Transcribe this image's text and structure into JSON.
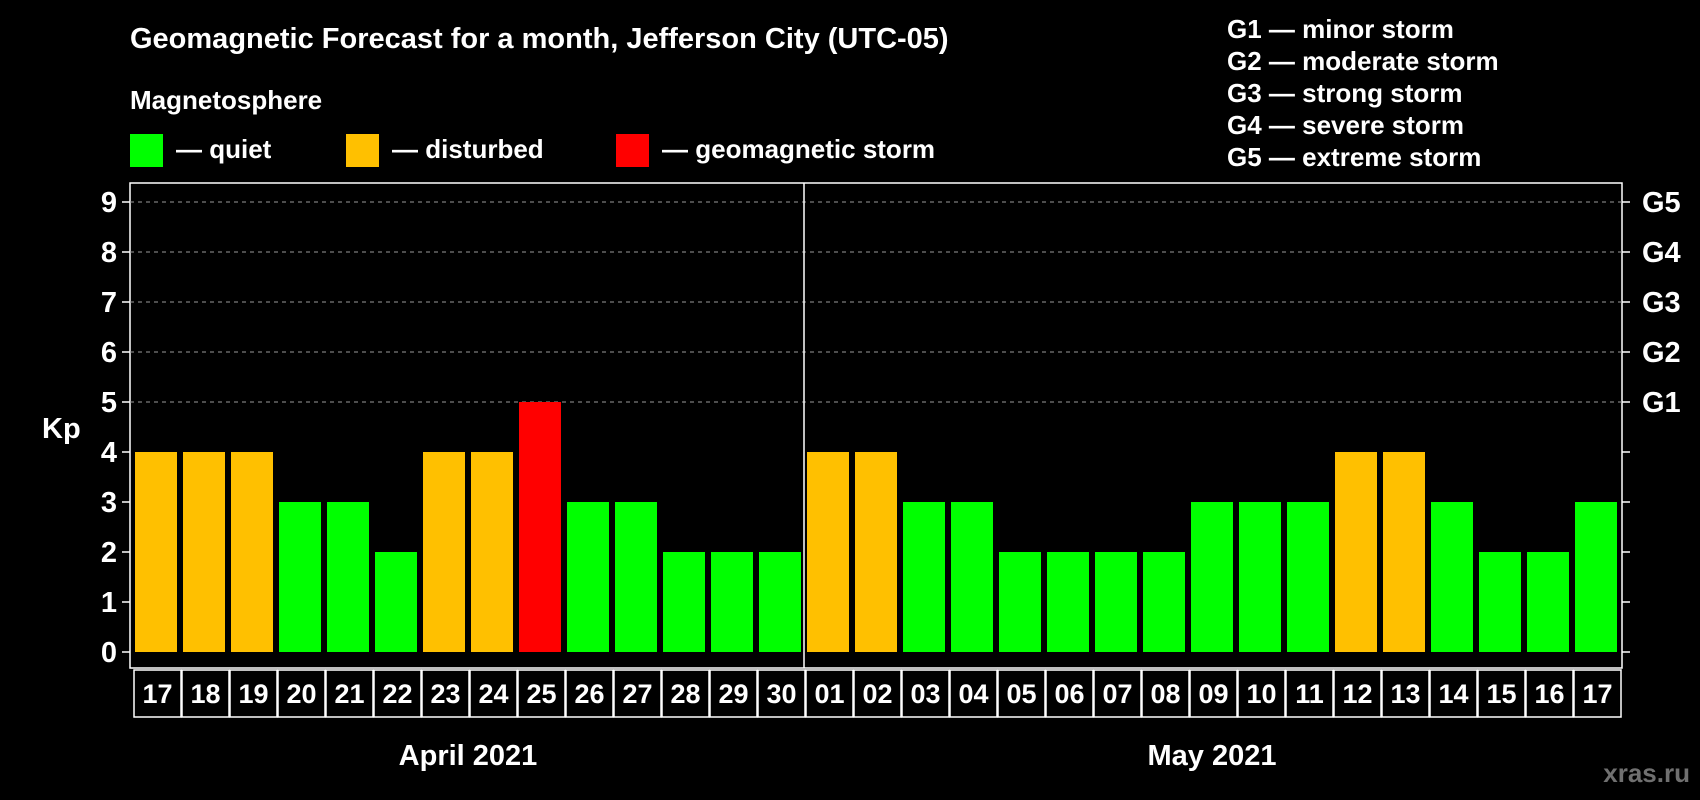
{
  "title": "Geomagnetic Forecast for a month, Jefferson City (UTC-05)",
  "subtitle": "Magnetosphere",
  "legend": [
    {
      "label": "— quiet",
      "color": "#00ff00"
    },
    {
      "label": "— disturbed",
      "color": "#ffc000"
    },
    {
      "label": "— geomagnetic storm",
      "color": "#ff0000"
    }
  ],
  "g_scale": [
    "G1 — minor storm",
    "G2 — moderate storm",
    "G3 — strong storm",
    "G4 — severe storm",
    "G5 — extreme storm"
  ],
  "watermark": "xras.ru",
  "chart_data": {
    "type": "bar",
    "ylabel": "Kp",
    "ylim": [
      0,
      9
    ],
    "yticks": [
      0,
      1,
      2,
      3,
      4,
      5,
      6,
      7,
      8,
      9
    ],
    "right_ticks": [
      {
        "value": 5,
        "label": "G1"
      },
      {
        "value": 6,
        "label": "G2"
      },
      {
        "value": 7,
        "label": "G3"
      },
      {
        "value": 8,
        "label": "G4"
      },
      {
        "value": 9,
        "label": "G5"
      }
    ],
    "grid": "dashed horizontal at 5-9",
    "categories": [
      "17",
      "18",
      "19",
      "20",
      "21",
      "22",
      "23",
      "24",
      "25",
      "26",
      "27",
      "28",
      "29",
      "30",
      "01",
      "02",
      "03",
      "04",
      "05",
      "06",
      "07",
      "08",
      "09",
      "10",
      "11",
      "12",
      "13",
      "14",
      "15",
      "16",
      "17"
    ],
    "values": [
      4,
      4,
      4,
      3,
      3,
      2,
      4,
      4,
      5,
      3,
      3,
      2,
      2,
      2,
      4,
      4,
      3,
      3,
      2,
      2,
      2,
      2,
      3,
      3,
      3,
      4,
      4,
      3,
      2,
      2,
      3
    ],
    "colors": {
      "quiet": "#00ff00",
      "disturbed": "#ffc000",
      "storm": "#ff0000"
    },
    "months": [
      {
        "label": "April 2021",
        "start": 0,
        "count": 14
      },
      {
        "label": "May 2021",
        "start": 14,
        "count": 17
      }
    ]
  }
}
